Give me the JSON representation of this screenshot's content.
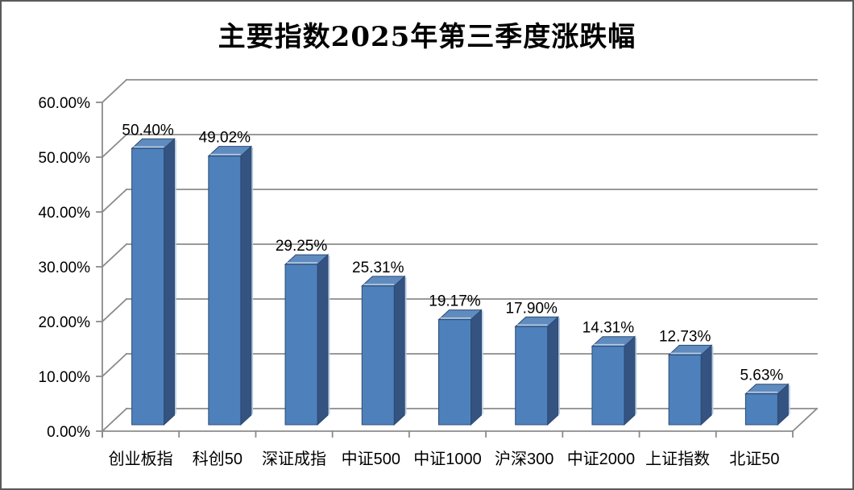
{
  "window": {
    "background_color": "#ffffff",
    "border_color": "#595959"
  },
  "chart_data": {
    "type": "bar",
    "style": "3d-column",
    "title": "主要指数2025年第三季度涨跌幅",
    "xlabel": "",
    "ylabel": "",
    "legend_position": "none",
    "grid": true,
    "categories": [
      "创业板指",
      "科创50",
      "深证成指",
      "中证500",
      "中证1000",
      "沪深300",
      "中证2000",
      "上证指数",
      "北证50"
    ],
    "values": [
      50.4,
      49.02,
      29.25,
      25.31,
      19.17,
      17.9,
      14.31,
      12.73,
      5.63
    ],
    "data_labels": [
      "50.40%",
      "49.02%",
      "29.25%",
      "25.31%",
      "19.17%",
      "17.90%",
      "14.31%",
      "12.73%",
      "5.63%"
    ],
    "y_axis": {
      "min": 0,
      "max": 60,
      "tick_step": 10,
      "ticks": [
        {
          "v": 0,
          "label": "0.00%"
        },
        {
          "v": 10,
          "label": "10.00%"
        },
        {
          "v": 20,
          "label": "20.00%"
        },
        {
          "v": 30,
          "label": "30.00%"
        },
        {
          "v": 40,
          "label": "40.00%"
        },
        {
          "v": 50,
          "label": "50.00%"
        },
        {
          "v": 60,
          "label": "60.00%"
        }
      ]
    },
    "colors": {
      "bar_front": "#4E81BC",
      "bar_top": "#5F8BBF",
      "bar_side": "#355380",
      "bar_outline": "#2A4A74",
      "bar_highlight": "#B9CBE0",
      "gridline": "#8B8B8B",
      "label_text": "#000000"
    }
  }
}
